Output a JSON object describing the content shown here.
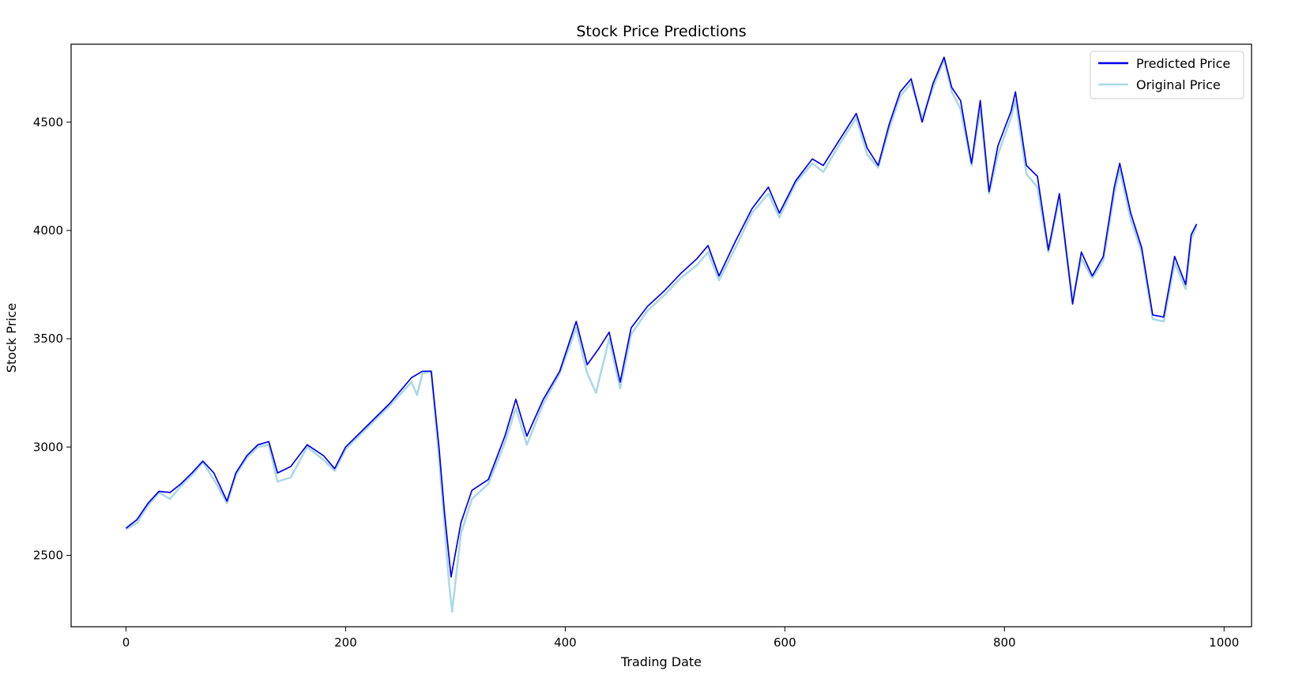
{
  "chart_data": {
    "type": "line",
    "title": "Stock Price Predictions",
    "xlabel": "Trading Date",
    "ylabel": "Stock Price",
    "xlim": [
      -50,
      1025
    ],
    "ylim": [
      2170,
      4860
    ],
    "x_ticks": [
      0,
      200,
      400,
      600,
      800,
      1000
    ],
    "y_ticks": [
      2500,
      3000,
      3500,
      4000,
      4500
    ],
    "legend_position": "top-right",
    "grid": false,
    "series": [
      {
        "name": "Predicted Price",
        "color": "#0000ee",
        "points": [
          [
            0,
            2625
          ],
          [
            10,
            2665
          ],
          [
            20,
            2740
          ],
          [
            30,
            2795
          ],
          [
            40,
            2790
          ],
          [
            50,
            2830
          ],
          [
            60,
            2880
          ],
          [
            70,
            2935
          ],
          [
            80,
            2880
          ],
          [
            92,
            2750
          ],
          [
            100,
            2880
          ],
          [
            110,
            2960
          ],
          [
            120,
            3010
          ],
          [
            130,
            3025
          ],
          [
            138,
            2880
          ],
          [
            150,
            2910
          ],
          [
            165,
            3010
          ],
          [
            180,
            2960
          ],
          [
            190,
            2900
          ],
          [
            200,
            3000
          ],
          [
            220,
            3100
          ],
          [
            240,
            3200
          ],
          [
            260,
            3320
          ],
          [
            270,
            3350
          ],
          [
            278,
            3350
          ],
          [
            285,
            3000
          ],
          [
            290,
            2700
          ],
          [
            296,
            2400
          ],
          [
            305,
            2650
          ],
          [
            315,
            2800
          ],
          [
            330,
            2850
          ],
          [
            345,
            3050
          ],
          [
            355,
            3220
          ],
          [
            365,
            3050
          ],
          [
            380,
            3220
          ],
          [
            395,
            3350
          ],
          [
            410,
            3580
          ],
          [
            420,
            3380
          ],
          [
            430,
            3450
          ],
          [
            440,
            3530
          ],
          [
            450,
            3300
          ],
          [
            460,
            3550
          ],
          [
            475,
            3650
          ],
          [
            490,
            3720
          ],
          [
            505,
            3800
          ],
          [
            520,
            3870
          ],
          [
            530,
            3930
          ],
          [
            540,
            3790
          ],
          [
            555,
            3950
          ],
          [
            570,
            4100
          ],
          [
            585,
            4200
          ],
          [
            595,
            4080
          ],
          [
            610,
            4230
          ],
          [
            625,
            4330
          ],
          [
            635,
            4300
          ],
          [
            650,
            4420
          ],
          [
            665,
            4540
          ],
          [
            675,
            4380
          ],
          [
            685,
            4300
          ],
          [
            695,
            4490
          ],
          [
            705,
            4640
          ],
          [
            715,
            4700
          ],
          [
            725,
            4500
          ],
          [
            735,
            4680
          ],
          [
            745,
            4800
          ],
          [
            752,
            4660
          ],
          [
            760,
            4600
          ],
          [
            770,
            4310
          ],
          [
            778,
            4600
          ],
          [
            786,
            4180
          ],
          [
            794,
            4390
          ],
          [
            806,
            4550
          ],
          [
            810,
            4640
          ],
          [
            820,
            4300
          ],
          [
            830,
            4250
          ],
          [
            840,
            3910
          ],
          [
            850,
            4170
          ],
          [
            862,
            3660
          ],
          [
            870,
            3900
          ],
          [
            880,
            3790
          ],
          [
            890,
            3880
          ],
          [
            900,
            4200
          ],
          [
            905,
            4310
          ],
          [
            915,
            4080
          ],
          [
            925,
            3920
          ],
          [
            935,
            3610
          ],
          [
            945,
            3600
          ],
          [
            955,
            3880
          ],
          [
            965,
            3750
          ],
          [
            970,
            3980
          ],
          [
            975,
            4030
          ]
        ]
      },
      {
        "name": "Original Price",
        "color": "#add8e6",
        "points": [
          [
            0,
            2620
          ],
          [
            10,
            2650
          ],
          [
            20,
            2730
          ],
          [
            30,
            2790
          ],
          [
            40,
            2760
          ],
          [
            50,
            2820
          ],
          [
            60,
            2870
          ],
          [
            70,
            2930
          ],
          [
            80,
            2850
          ],
          [
            92,
            2740
          ],
          [
            100,
            2870
          ],
          [
            110,
            2950
          ],
          [
            120,
            3000
          ],
          [
            130,
            3010
          ],
          [
            138,
            2840
          ],
          [
            150,
            2860
          ],
          [
            165,
            3000
          ],
          [
            180,
            2940
          ],
          [
            190,
            2890
          ],
          [
            200,
            2990
          ],
          [
            220,
            3090
          ],
          [
            240,
            3190
          ],
          [
            260,
            3300
          ],
          [
            265,
            3240
          ],
          [
            270,
            3340
          ],
          [
            278,
            3350
          ],
          [
            285,
            2950
          ],
          [
            290,
            2650
          ],
          [
            294,
            2380
          ],
          [
            297,
            2240
          ],
          [
            305,
            2600
          ],
          [
            315,
            2760
          ],
          [
            330,
            2830
          ],
          [
            345,
            3020
          ],
          [
            355,
            3180
          ],
          [
            365,
            3010
          ],
          [
            380,
            3200
          ],
          [
            395,
            3340
          ],
          [
            410,
            3550
          ],
          [
            420,
            3340
          ],
          [
            428,
            3250
          ],
          [
            440,
            3500
          ],
          [
            450,
            3270
          ],
          [
            460,
            3520
          ],
          [
            475,
            3630
          ],
          [
            490,
            3700
          ],
          [
            505,
            3780
          ],
          [
            520,
            3840
          ],
          [
            530,
            3900
          ],
          [
            540,
            3770
          ],
          [
            555,
            3920
          ],
          [
            570,
            4080
          ],
          [
            585,
            4170
          ],
          [
            595,
            4060
          ],
          [
            610,
            4220
          ],
          [
            625,
            4310
          ],
          [
            635,
            4270
          ],
          [
            650,
            4400
          ],
          [
            665,
            4520
          ],
          [
            675,
            4350
          ],
          [
            685,
            4290
          ],
          [
            695,
            4470
          ],
          [
            705,
            4620
          ],
          [
            715,
            4680
          ],
          [
            725,
            4520
          ],
          [
            735,
            4660
          ],
          [
            745,
            4790
          ],
          [
            752,
            4640
          ],
          [
            760,
            4560
          ],
          [
            770,
            4300
          ],
          [
            778,
            4560
          ],
          [
            786,
            4170
          ],
          [
            794,
            4350
          ],
          [
            806,
            4520
          ],
          [
            810,
            4600
          ],
          [
            820,
            4260
          ],
          [
            830,
            4200
          ],
          [
            840,
            3900
          ],
          [
            850,
            4150
          ],
          [
            862,
            3680
          ],
          [
            870,
            3870
          ],
          [
            880,
            3780
          ],
          [
            890,
            3860
          ],
          [
            900,
            4170
          ],
          [
            905,
            4280
          ],
          [
            915,
            4050
          ],
          [
            925,
            3900
          ],
          [
            935,
            3590
          ],
          [
            945,
            3580
          ],
          [
            955,
            3850
          ],
          [
            965,
            3730
          ],
          [
            970,
            3960
          ],
          [
            975,
            4020
          ]
        ]
      }
    ]
  }
}
